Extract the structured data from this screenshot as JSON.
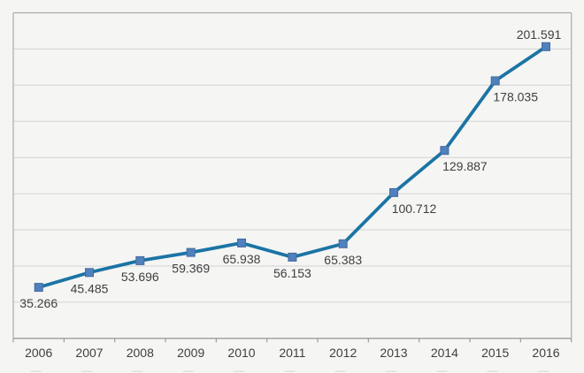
{
  "chart_data": {
    "type": "line",
    "title": "",
    "xlabel": "",
    "ylabel": "",
    "categories": [
      "2006",
      "2007",
      "2008",
      "2009",
      "2010",
      "2011",
      "2012",
      "2013",
      "2014",
      "2015",
      "2016"
    ],
    "series": [
      {
        "name": "value",
        "values": [
          35.266,
          45.485,
          53.696,
          59.369,
          65.938,
          56.153,
          65.383,
          100.712,
          129.887,
          178.035,
          201.591
        ]
      }
    ],
    "data_labels": [
      "35.266",
      "45.485",
      "53.696",
      "59.369",
      "65.938",
      "56.153",
      "65.383",
      "100.712",
      "129.887",
      "178.035",
      "201.591"
    ],
    "ylim": [
      0,
      225
    ],
    "grid_step": 25,
    "grid": "horizontal-only",
    "legend": "none",
    "y_axis_labels": "none",
    "colors": {
      "line": "#1b74a4",
      "marker_fill": "#4f81bd",
      "marker_border": "#44699d",
      "label_text": "#3f3f3f",
      "axis_text": "#3f3f3f",
      "gridline": "#d4d4d3",
      "plot_border": "#ababab",
      "axis_line": "#9c9c9c",
      "background": "#f5f5f4"
    }
  }
}
